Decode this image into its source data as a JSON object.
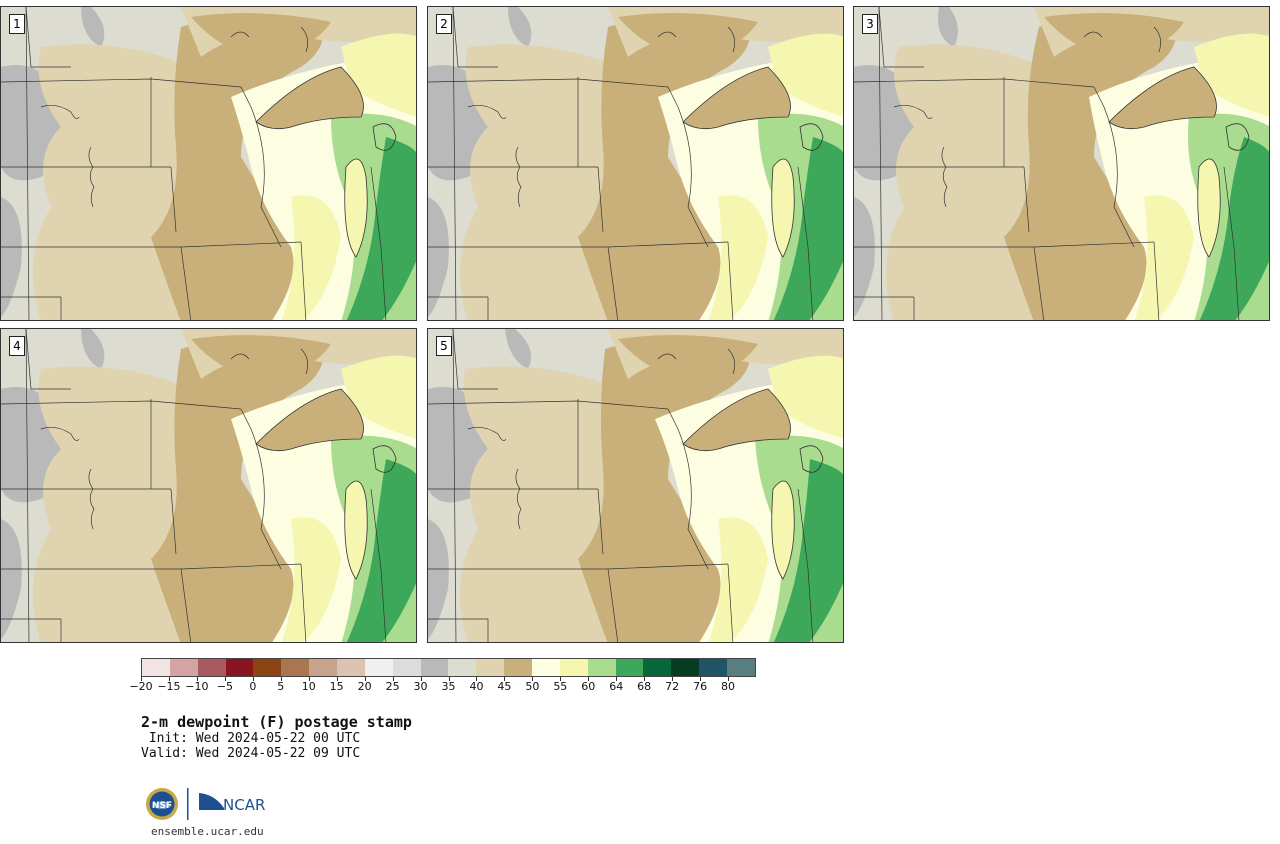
{
  "panels": [
    {
      "id": "1"
    },
    {
      "id": "2"
    },
    {
      "id": "3"
    },
    {
      "id": "4"
    },
    {
      "id": "5"
    }
  ],
  "colorbar": {
    "colors": [
      "#f3e4e4",
      "#d3a3a5",
      "#a85a60",
      "#8a1521",
      "#8b4513",
      "#aa7650",
      "#c6a38a",
      "#dcc2b0",
      "#f0f0f0",
      "#dcdcdc",
      "#b9b9b9",
      "#dcdcd0",
      "#e0d4b0",
      "#c9b07a",
      "#fdfde2",
      "#f5f6b0",
      "#a9dc8f",
      "#3ea85a",
      "#06683a",
      "#063c22",
      "#1f5565",
      "#587e80"
    ],
    "tick_labels": [
      "−20",
      "−15",
      "−10",
      "−5",
      "0",
      "5",
      "10",
      "15",
      "20",
      "25",
      "30",
      "35",
      "40",
      "45",
      "50",
      "55",
      "60",
      "64",
      "68",
      "72",
      "76",
      "80"
    ]
  },
  "title": "2-m dewpoint (F) postage stamp",
  "init": " Init: Wed 2024-05-22 00 UTC",
  "valid": "Valid: Wed 2024-05-22 09 UTC",
  "footer": {
    "nsf_logo_text": "NSF",
    "ncar_logo_text": "NCAR",
    "url": "ensemble.ucar.edu"
  }
}
